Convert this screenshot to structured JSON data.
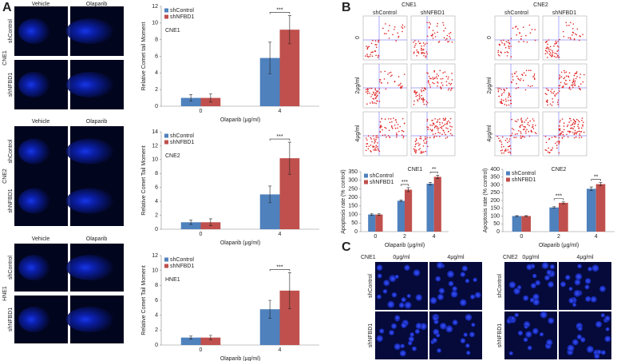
{
  "panel_labels": [
    "A",
    "B",
    "C"
  ],
  "comet": {
    "columns": [
      "Vehicle",
      "Olaparib"
    ],
    "groups": [
      {
        "name": "CNE1",
        "rows": [
          "shControl",
          "shNFBD1"
        ]
      },
      {
        "name": "CNE2",
        "rows": [
          "shControl",
          "shNFBD1"
        ]
      },
      {
        "name": "HNE1",
        "rows": [
          "shControl",
          "shNFBD1"
        ]
      }
    ]
  },
  "flow": {
    "groups": [
      {
        "name": "CNE1",
        "columns": [
          "shControl",
          "shNFBD1"
        ],
        "rows": [
          "0",
          "2μg/ml",
          "4μg/ml"
        ]
      },
      {
        "name": "CNE2",
        "columns": [
          "shControl",
          "shNFBD1"
        ],
        "rows": [
          "0",
          "2μg/ml",
          "4μg/ml"
        ]
      }
    ]
  },
  "microscopy": {
    "groups": [
      {
        "name": "CNE1",
        "columns": [
          "0μg/ml",
          "4μg/ml"
        ],
        "rows": [
          "shControl",
          "shNFBD1"
        ]
      },
      {
        "name": "CNE2",
        "columns": [
          "0μg/ml",
          "4μg/ml"
        ],
        "rows": [
          "shControl",
          "shNFBD1"
        ]
      }
    ]
  },
  "chart_data": [
    {
      "type": "bar",
      "title": "CNE1",
      "xlabel": "Olaparib (μg/ml)",
      "ylabel": "Relative Comet tail Moment",
      "categories": [
        "0",
        "4"
      ],
      "series": [
        {
          "name": "shControl",
          "color": "#4f81bd",
          "values": [
            1,
            5.8
          ],
          "errors": [
            0.4,
            1.9
          ]
        },
        {
          "name": "shNFBD1",
          "color": "#c0504d",
          "values": [
            1,
            9.2
          ],
          "errors": [
            0.5,
            1.7
          ]
        }
      ],
      "significance": [
        null,
        "***"
      ],
      "ylim": [
        0,
        12
      ],
      "yticks": [
        0,
        2,
        4,
        6,
        8,
        10,
        12
      ],
      "legend": "upper left"
    },
    {
      "type": "bar",
      "title": "CNE2",
      "xlabel": "Olaparib (μg/ml)",
      "ylabel": "Relative Comet Tail Moment",
      "categories": [
        "0",
        "4"
      ],
      "series": [
        {
          "name": "shControl",
          "color": "#4f81bd",
          "values": [
            1,
            5
          ],
          "errors": [
            0.3,
            1.2
          ]
        },
        {
          "name": "shNFBD1",
          "color": "#c0504d",
          "values": [
            1,
            10.2
          ],
          "errors": [
            0.5,
            2.3
          ]
        }
      ],
      "significance": [
        null,
        "***"
      ],
      "ylim": [
        0,
        14
      ],
      "yticks": [
        0,
        2,
        4,
        6,
        8,
        10,
        12,
        14
      ],
      "legend": "upper left"
    },
    {
      "type": "bar",
      "title": "HNE1",
      "xlabel": "Olaparib (μg/ml)",
      "ylabel": "Relative Comet Tail Moment",
      "categories": [
        "0",
        "4"
      ],
      "series": [
        {
          "name": "shControl",
          "color": "#4f81bd",
          "values": [
            1,
            4.8
          ],
          "errors": [
            0.2,
            1.2
          ]
        },
        {
          "name": "shNFBD1",
          "color": "#c0504d",
          "values": [
            1,
            7.3
          ],
          "errors": [
            0.3,
            2.4
          ]
        }
      ],
      "significance": [
        null,
        "***"
      ],
      "ylim": [
        0,
        12
      ],
      "yticks": [
        0,
        2,
        4,
        6,
        8,
        10,
        12
      ],
      "legend": "upper left"
    },
    {
      "type": "bar",
      "title": "CNE1",
      "xlabel": "Olaparib (μg/ml)",
      "ylabel": "Apoptosis rate (% control)",
      "categories": [
        "0",
        "2",
        "4"
      ],
      "series": [
        {
          "name": "shControl",
          "color": "#4f81bd",
          "values": [
            100,
            180,
            280
          ],
          "errors": [
            5,
            5,
            8
          ]
        },
        {
          "name": "shNFBD1",
          "color": "#c0504d",
          "values": [
            100,
            245,
            320
          ],
          "errors": [
            5,
            12,
            10
          ]
        }
      ],
      "significance": [
        null,
        "***",
        "**"
      ],
      "ylim": [
        0,
        350
      ],
      "yticks": [
        0,
        50,
        100,
        150,
        200,
        250,
        300,
        350
      ],
      "legend": "upper left"
    },
    {
      "type": "bar",
      "title": "CNE2",
      "xlabel": "Olaparib (μg/ml)",
      "ylabel": "Apoptosis rate (% control)",
      "categories": [
        "0",
        "2",
        "4"
      ],
      "series": [
        {
          "name": "shControl",
          "color": "#4f81bd",
          "values": [
            100,
            155,
            275
          ],
          "errors": [
            3,
            5,
            12
          ]
        },
        {
          "name": "shNFBD1",
          "color": "#c0504d",
          "values": [
            100,
            185,
            305
          ],
          "errors": [
            3,
            6,
            10
          ]
        }
      ],
      "significance": [
        null,
        "***",
        "**"
      ],
      "ylim": [
        0,
        400
      ],
      "yticks": [
        0,
        50,
        100,
        150,
        200,
        250,
        300,
        350,
        400
      ],
      "legend": "upper left"
    }
  ]
}
